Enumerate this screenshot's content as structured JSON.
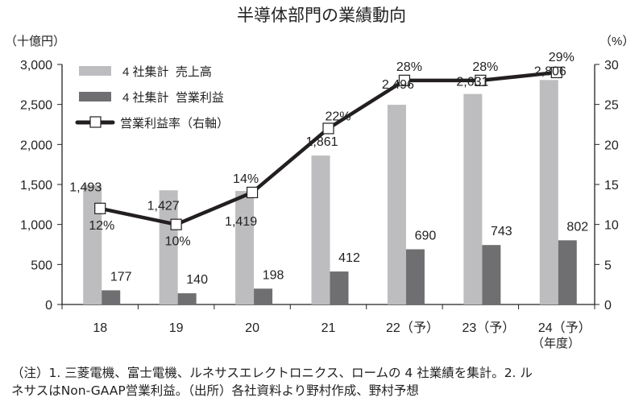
{
  "chart_data": {
    "type": "bar+line",
    "title": "半導体部門の業績動向",
    "ylabel_left": "（十億円）",
    "ylabel_right": "（%）",
    "xlabel": "（年度）",
    "categories": [
      "18",
      "19",
      "20",
      "21",
      "22（予）",
      "23（予）",
      "24（予）"
    ],
    "ylim_left": [
      0,
      3000
    ],
    "ylim_right": [
      0,
      30
    ],
    "yticks_left": [
      "0",
      "500",
      "1,000",
      "1,500",
      "2,000",
      "2,500",
      "3,000"
    ],
    "yticks_right": [
      "0",
      "5",
      "10",
      "15",
      "20",
      "25",
      "30"
    ],
    "legend_position": "top-left",
    "series": [
      {
        "name": "4 社集計  売上高",
        "type": "bar",
        "color": "#bdbdbf",
        "axis": "left",
        "values": [
          1493,
          1427,
          1419,
          1861,
          2496,
          2631,
          2806
        ],
        "labels": [
          "1,493",
          "1,427",
          "1,419",
          "1,861",
          "2,496",
          "2,631",
          "2,806"
        ]
      },
      {
        "name": "4 社集計  営業利益",
        "type": "bar",
        "color": "#6f6f71",
        "axis": "left",
        "values": [
          177,
          140,
          198,
          412,
          690,
          743,
          802
        ],
        "labels": [
          "177",
          "140",
          "198",
          "412",
          "690",
          "743",
          "802"
        ]
      },
      {
        "name": "営業利益率（右軸）",
        "type": "line",
        "color": "#231f20",
        "axis": "right",
        "values": [
          12,
          10,
          14,
          22,
          28,
          28,
          29
        ],
        "labels": [
          "12%",
          "10%",
          "14%",
          "22%",
          "28%",
          "28%",
          "29%"
        ]
      }
    ]
  },
  "footnote": {
    "line1": "（注）1. 三菱電機、富士電機、ルネサスエレクトロニクス、ロームの 4 社業績を集計。2. ル",
    "line2": "ネサスはNon-GAAP営業利益。（出所）各社資料より野村作成、野村予想"
  }
}
